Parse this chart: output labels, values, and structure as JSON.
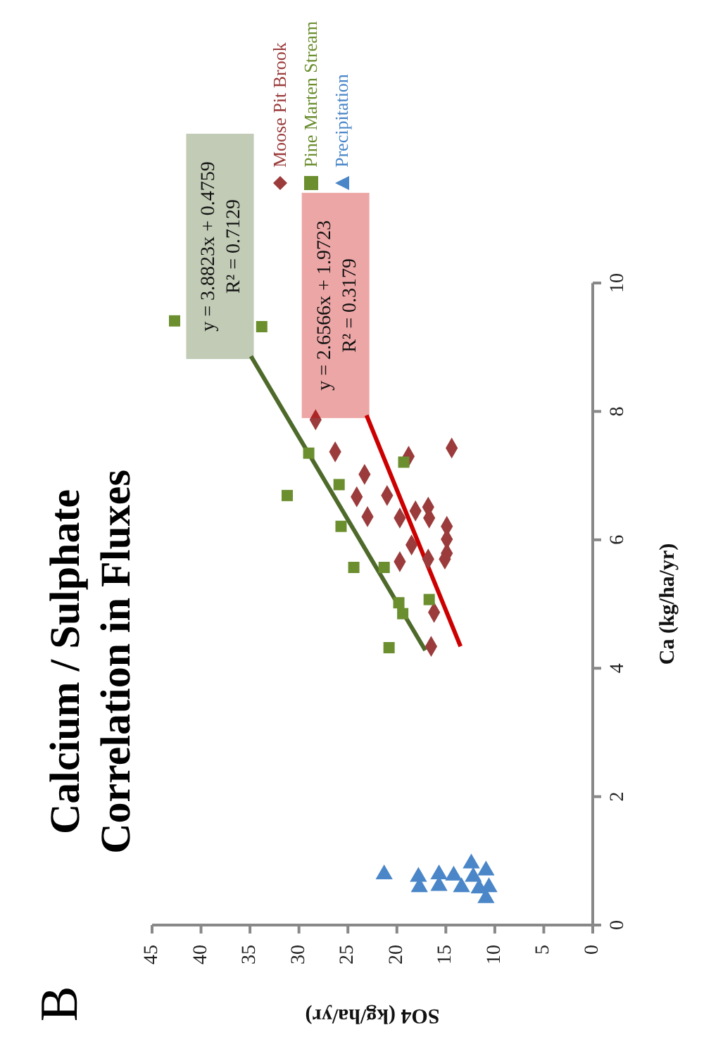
{
  "chart_data": {
    "type": "scatter",
    "title": "Calcium / Sulphate Correlation in Fluxes",
    "xlabel": "SO4 (kg/ha/yr)",
    "ylabel": "Ca (kg/ha/yr)",
    "xlim": [
      45,
      0
    ],
    "xticks": [
      45,
      40,
      35,
      30,
      25,
      20,
      15,
      10,
      5,
      0
    ],
    "ylim": [
      0,
      10
    ],
    "yticks": [
      0,
      2,
      4,
      6,
      8,
      10
    ],
    "grid": false,
    "legend": "top left",
    "series": [
      {
        "name": "Moose Pit Brook",
        "color": "#9b3b3b",
        "marker": "diamond",
        "x": [
          28.3,
          26.3,
          23.3,
          24.1,
          21.0,
          23.0,
          18.8,
          14.4,
          19.7,
          18.1,
          16.8,
          16.7,
          14.9,
          14.9,
          18.5,
          14.9,
          15.1,
          16.8,
          19.7,
          16.2,
          16.5
        ],
        "values": [
          7.87,
          7.37,
          7.02,
          6.67,
          6.69,
          6.36,
          7.3,
          7.43,
          6.34,
          6.45,
          6.51,
          6.34,
          6.21,
          6.01,
          5.92,
          5.79,
          5.7,
          5.7,
          5.66,
          4.87,
          4.34
        ]
      },
      {
        "name": "Pine Marten Stream",
        "color": "#6b8e2f",
        "marker": "square",
        "x": [
          42.7,
          33.8,
          29.0,
          31.2,
          25.9,
          25.7,
          19.3,
          24.4,
          21.3,
          19.8,
          19.4,
          16.7,
          20.8
        ],
        "values": [
          9.41,
          9.32,
          7.35,
          6.69,
          6.86,
          6.21,
          7.21,
          5.57,
          5.57,
          5.02,
          4.85,
          5.07,
          4.32
        ]
      },
      {
        "name": "Precipitation",
        "color": "#4a86c8",
        "marker": "triangle",
        "x": [
          21.3,
          17.8,
          17.7,
          15.7,
          15.7,
          14.2,
          13.4,
          12.4,
          12.2,
          10.9,
          11.6,
          10.6,
          10.9
        ],
        "values": [
          0.79,
          0.75,
          0.59,
          0.79,
          0.61,
          0.77,
          0.59,
          0.96,
          0.75,
          0.85,
          0.57,
          0.59,
          0.42
        ]
      },
      {
        "type": "line",
        "color": "#4e6a2a",
        "x": [
          17.1,
          34.9
        ],
        "values": [
          4.28,
          8.86
        ]
      },
      {
        "type": "line",
        "color": "#cc0000",
        "x": [
          13.5,
          23.1
        ],
        "values": [
          4.34,
          7.94
        ]
      }
    ],
    "annotations": [
      {
        "text": "y = 3.8823x + 0.4759\nR² = 0.7129",
        "x": 34.9,
        "y": 8.86
      },
      {
        "text": "y = 2.6566x + 1.9723\nR² = 0.3179",
        "x": 23.1,
        "y": 7.94
      },
      "B"
    ]
  }
}
